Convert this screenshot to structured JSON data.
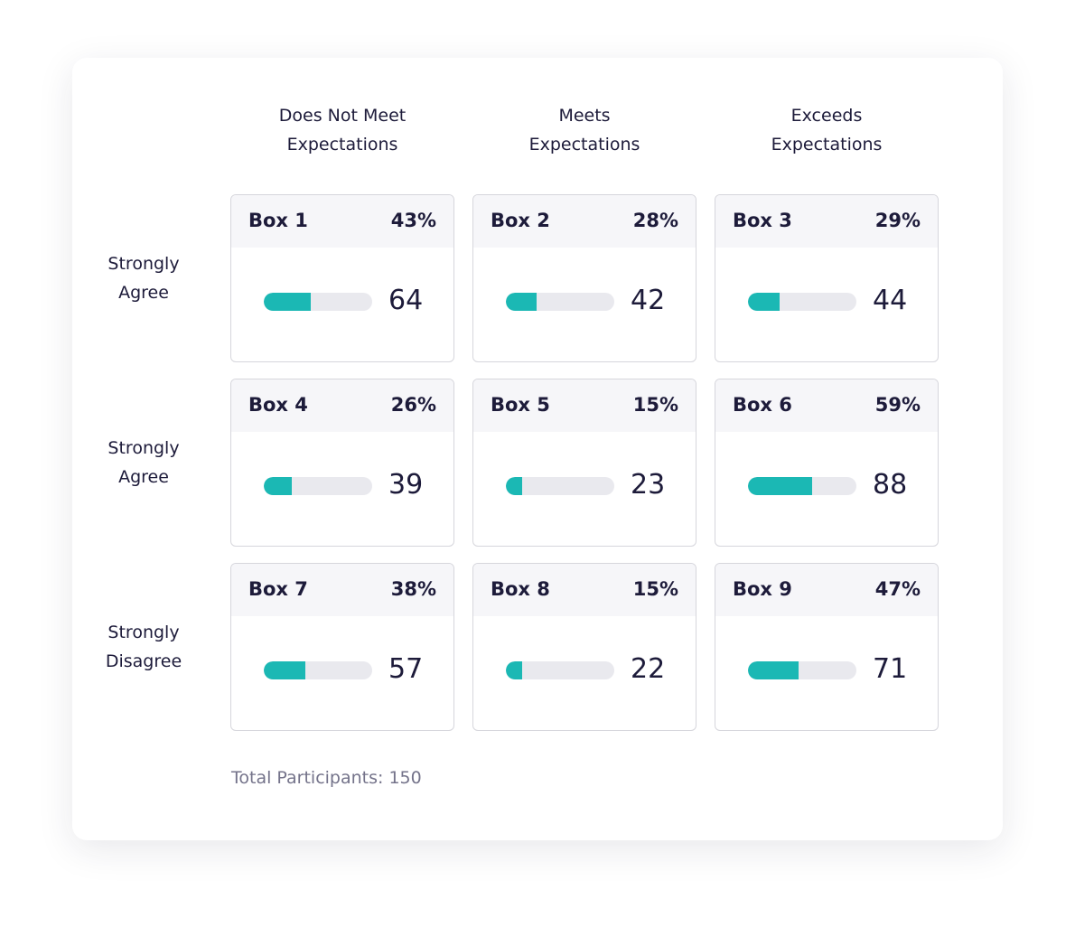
{
  "columns": [
    "Does Not Meet Expectations",
    "Meets Expectations",
    "Exceeds Expectations"
  ],
  "rows": [
    "Strongly Agree",
    "Strongly Agree",
    "Strongly Disagree"
  ],
  "boxes": [
    {
      "name": "Box 1",
      "share": {
        "value": 43,
        "label": "43%"
      },
      "count": 64
    },
    {
      "name": "Box 2",
      "share": {
        "value": 28,
        "label": "28%"
      },
      "count": 42
    },
    {
      "name": "Box 3",
      "share": {
        "value": 29,
        "label": "29%"
      },
      "count": 44
    },
    {
      "name": "Box 4",
      "share": {
        "value": 26,
        "label": "26%"
      },
      "count": 39
    },
    {
      "name": "Box 5",
      "share": {
        "value": 15,
        "label": "15%"
      },
      "count": 23
    },
    {
      "name": "Box 6",
      "share": {
        "value": 59,
        "label": "59%"
      },
      "count": 88
    },
    {
      "name": "Box 7",
      "share": {
        "value": 38,
        "label": "38%"
      },
      "count": 57
    },
    {
      "name": "Box 8",
      "share": {
        "value": 15,
        "label": "15%"
      },
      "count": 22
    },
    {
      "name": "Box 9",
      "share": {
        "value": 47,
        "label": "47%"
      },
      "count": 71
    }
  ],
  "footer": "Total Participants: 150"
}
